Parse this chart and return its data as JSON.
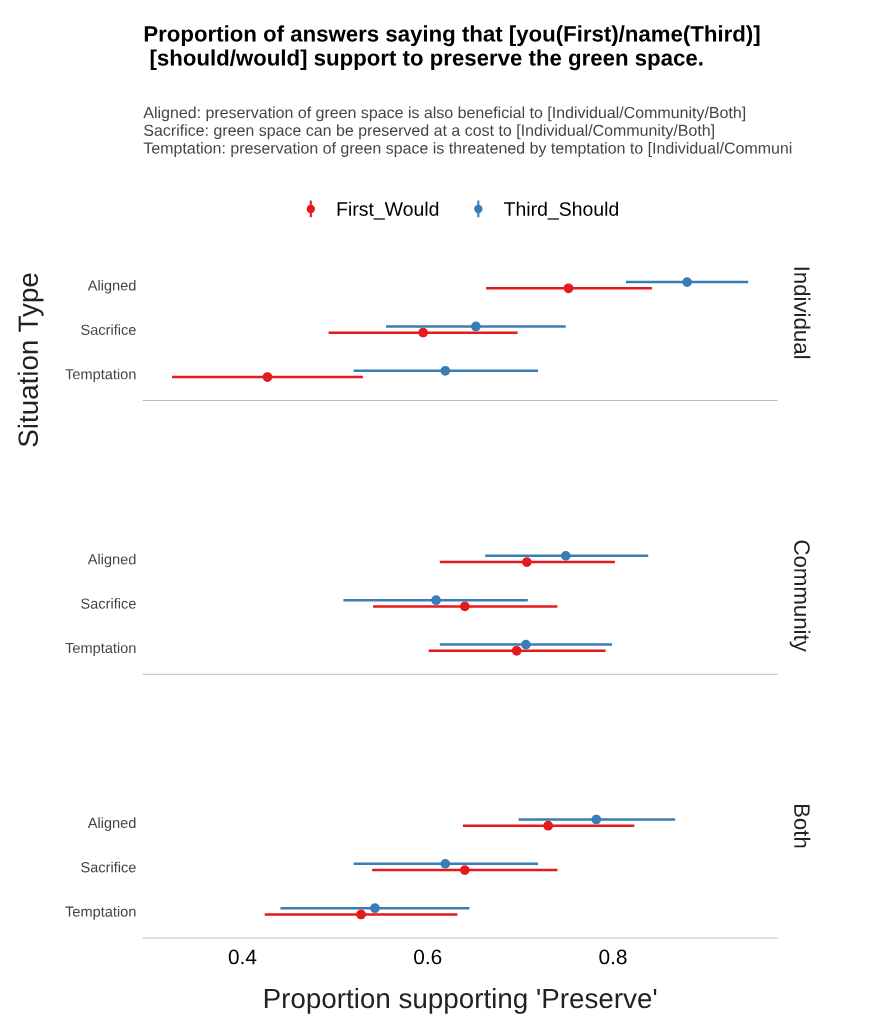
{
  "chart_data": [
    {
      "type": "scatter",
      "orientation": "horizontal",
      "title": "Proportion of answers saying that [you(First)/name(Third)]\n [should/would] support to preserve the green space.",
      "subtitle": "Aligned: preservation of green space is also beneficial to [Individual/Community/Both]\nSacrifice: green space can be preserved at a cost to [Individual/Community/Both]\nTemptation: preservation of green space is threatened by temptation to [Individual/Communi",
      "ylabel": "Situation Type",
      "annotations": [
        "Individual"
      ],
      "legend": "top",
      "marker": "circle",
      "tick_labels": "y",
      "xlim": [
        0.293,
        0.977
      ],
      "xticks": [
        0.4,
        0.6,
        0.8
      ],
      "categories": [
        "Aligned",
        "Sacrifice",
        "Temptation"
      ],
      "series": [
        {
          "name": "First_Would",
          "color": "#e41a1c",
          "values": [
            0.752,
            0.595,
            0.427
          ],
          "errors": [
            [
              0.663,
              0.842
            ],
            [
              0.493,
              0.697
            ],
            [
              0.324,
              0.53
            ]
          ]
        },
        {
          "name": "Third_Should",
          "color": "#377eb8",
          "values": [
            0.88,
            0.652,
            0.619
          ],
          "errors": [
            [
              0.814,
              0.946
            ],
            [
              0.555,
              0.749
            ],
            [
              0.52,
              0.719
            ]
          ]
        }
      ]
    },
    {
      "type": "scatter",
      "orientation": "horizontal",
      "annotations": [
        "Community"
      ],
      "marker": "circle",
      "tick_labels": "y",
      "xlim": [
        0.293,
        0.977
      ],
      "xticks": [
        0.4,
        0.6,
        0.8
      ],
      "categories": [
        "Aligned",
        "Sacrifice",
        "Temptation"
      ],
      "series": [
        {
          "color": "#e41a1c",
          "values": [
            0.707,
            0.64,
            0.696
          ],
          "errors": [
            [
              0.613,
              0.802
            ],
            [
              0.541,
              0.74
            ],
            [
              0.601,
              0.792
            ]
          ]
        },
        {
          "color": "#377eb8",
          "values": [
            0.749,
            0.609,
            0.706
          ],
          "errors": [
            [
              0.662,
              0.838
            ],
            [
              0.509,
              0.708
            ],
            [
              0.613,
              0.799
            ]
          ]
        }
      ]
    },
    {
      "type": "scatter",
      "orientation": "horizontal",
      "annotations": [
        "Both"
      ],
      "xlabel": "Proportion supporting 'Preserve'",
      "marker": "circle",
      "xlim": [
        0.293,
        0.977
      ],
      "xticks": [
        0.4,
        0.6,
        0.8
      ],
      "categories": [
        "Aligned",
        "Sacrifice",
        "Temptation"
      ],
      "series": [
        {
          "color": "#e41a1c",
          "values": [
            0.73,
            0.64,
            0.528
          ],
          "errors": [
            [
              0.638,
              0.823
            ],
            [
              0.54,
              0.74
            ],
            [
              0.424,
              0.632
            ]
          ]
        },
        {
          "color": "#377eb8",
          "values": [
            0.782,
            0.619,
            0.543
          ],
          "errors": [
            [
              0.698,
              0.867
            ],
            [
              0.52,
              0.719
            ],
            [
              0.441,
              0.645
            ]
          ]
        }
      ]
    }
  ]
}
